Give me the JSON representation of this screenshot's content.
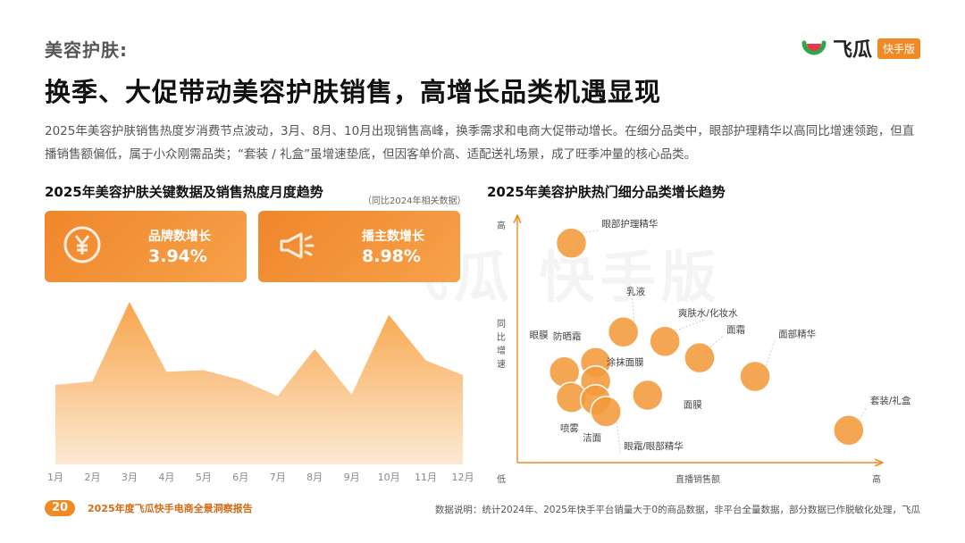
{
  "header": {
    "section": "美容护肤:",
    "title": "换季、大促带动美容护肤销售，高增长品类机遇显现",
    "logo_name": "飞瓜",
    "logo_tag": "快手版"
  },
  "intro": "2025年美容护肤销售热度岁消费节点波动，3月、8月、10月出现销售高峰，换季需求和电商大促带动增长。在细分品类中，眼部护理精华以高同比增速领跑，但直播销售额偏低，属于小众刚需品类；“套装 / 礼盒”虽增速垫底，但因客单价高、适配送礼场景，成了旺季冲量的核心品类。",
  "watermark": "飞瓜 快手版",
  "left": {
    "title": "2025年美容护肤关键数据及销售热度月度趋势",
    "note": "（同比2024年相关数据）",
    "kpis": [
      {
        "label": "品牌数增长",
        "value": "3.94%",
        "icon": "yuan-coin-icon"
      },
      {
        "label": "播主数增长",
        "value": "8.98%",
        "icon": "megaphone-icon"
      }
    ]
  },
  "right": {
    "title": "2025年美容护肤热门细分品类增长趋势"
  },
  "colors": {
    "accent": "#f08a24",
    "accent_light": "#f6a24a",
    "area_top": "#f7a54a",
    "area_bottom": "#fde9d4",
    "bubble": "#f39a3a"
  },
  "chart_data": [
    {
      "type": "area",
      "title": "",
      "x": [
        "1月",
        "2月",
        "3月",
        "4月",
        "5月",
        "6月",
        "7月",
        "8月",
        "9月",
        "10月",
        "11月",
        "12月"
      ],
      "values": [
        0.49,
        0.51,
        1.0,
        0.57,
        0.58,
        0.52,
        0.42,
        0.71,
        0.43,
        0.92,
        0.64,
        0.55
      ],
      "ylim": [
        0,
        1
      ],
      "ylabel": "",
      "xlabel": "",
      "grid": false
    },
    {
      "type": "scatter",
      "title": "",
      "xlabel": "直播销售额",
      "ylabel": "同比增速",
      "x_ticks": {
        "low": "低",
        "high": "高"
      },
      "y_ticks": {
        "low": "低",
        "high": "高"
      },
      "xlim": [
        0,
        1
      ],
      "ylim": [
        0,
        1
      ],
      "points": [
        {
          "name": "眼部护理精华",
          "x": 0.13,
          "y": 0.9
        },
        {
          "name": "乳液",
          "x": 0.28,
          "y": 0.52
        },
        {
          "name": "爽肤水/化妆水",
          "x": 0.4,
          "y": 0.48
        },
        {
          "name": "面霜",
          "x": 0.5,
          "y": 0.41
        },
        {
          "name": "面部精华",
          "x": 0.66,
          "y": 0.33
        },
        {
          "name": "防晒霜",
          "x": 0.2,
          "y": 0.39
        },
        {
          "name": "眼膜",
          "x": 0.11,
          "y": 0.35
        },
        {
          "name": "涂抹面膜",
          "x": 0.2,
          "y": 0.31
        },
        {
          "name": "喷雾",
          "x": 0.13,
          "y": 0.24
        },
        {
          "name": "洁面",
          "x": 0.2,
          "y": 0.23
        },
        {
          "name": "眼霜/眼部精华",
          "x": 0.23,
          "y": 0.18
        },
        {
          "name": "面膜",
          "x": 0.35,
          "y": 0.25
        },
        {
          "name": "套装/礼盒",
          "x": 0.93,
          "y": 0.1
        }
      ]
    }
  ],
  "footer": {
    "page": "20",
    "report": "2025年度飞瓜快手电商全景洞察报告",
    "note": "数据说明：统计2024年、2025年快手平台销量大于0的商品数据，非平台全量数据，部分数据已作脱敏化处理，飞瓜"
  }
}
